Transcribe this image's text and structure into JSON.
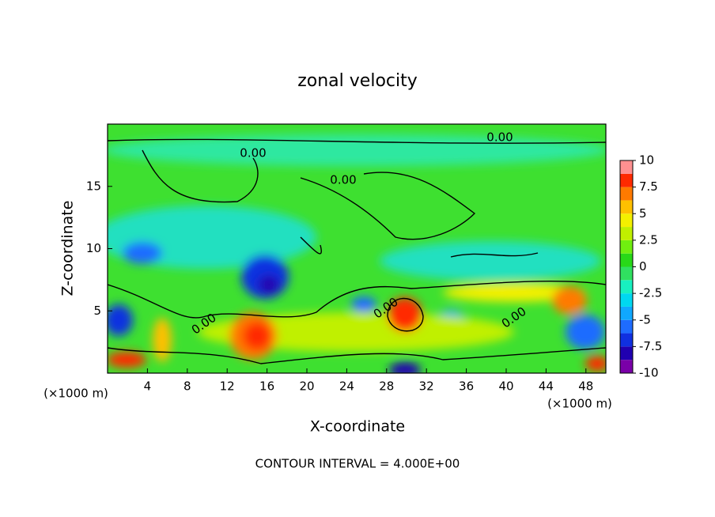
{
  "chart_data": {
    "type": "contour",
    "title": "zonal velocity",
    "xlabel": "X-coordinate",
    "ylabel": "Z-coordinate",
    "x_unit_label": "(×1000 m)",
    "contour_interval_label": "CONTOUR INTERVAL = 4.000E+00",
    "xlim": [
      0,
      50
    ],
    "xticks": [
      4,
      8,
      12,
      16,
      20,
      24,
      28,
      32,
      36,
      40,
      44,
      48
    ],
    "ylim": [
      0,
      20
    ],
    "yticks": [
      5,
      10,
      15
    ],
    "contour_labels": [
      "0.00",
      "0.00",
      "0.00",
      "0.00",
      "0.00",
      "0.00"
    ],
    "colorbar": {
      "lim": [
        -10,
        10
      ],
      "ticks": [
        10,
        7.5,
        5,
        2.5,
        0,
        -2.5,
        -5,
        -7.5,
        -10
      ],
      "colors": [
        "#7a00a8",
        "#2000b0",
        "#1030e0",
        "#1e6cff",
        "#10a8ff",
        "#00d8f0",
        "#18f0c0",
        "#30e060",
        "#28d818",
        "#70ee10",
        "#c0f000",
        "#f4f000",
        "#ffc000",
        "#ff7a00",
        "#ff2a00",
        "#ff9090"
      ]
    }
  }
}
